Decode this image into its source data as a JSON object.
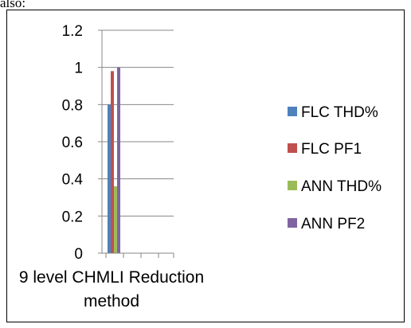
{
  "page_top_text": "also:",
  "chart_data": {
    "type": "bar",
    "title": "",
    "xlabel": "9 level CHMLI Reduction method",
    "xlabel_lines": [
      "9 level CHMLI Reduction",
      "method"
    ],
    "ylabel": "",
    "ylim": [
      0,
      1.2
    ],
    "yticks": [
      "0",
      "0.2",
      "0.4",
      "0.6",
      "0.8",
      "1",
      "1.2"
    ],
    "grid": true,
    "legend_position": "right",
    "categories": [
      "9 level CHMLI Reduction method"
    ],
    "series": [
      {
        "name": "FLC THD%",
        "values": [
          0.8
        ],
        "color": "#4F81BD"
      },
      {
        "name": "FLC PF1",
        "values": [
          0.98
        ],
        "color": "#C0504D"
      },
      {
        "name": "ANN THD%",
        "values": [
          0.36
        ],
        "color": "#9BBB59"
      },
      {
        "name": "ANN PF2",
        "values": [
          1.0
        ],
        "color": "#8064A2"
      }
    ]
  }
}
